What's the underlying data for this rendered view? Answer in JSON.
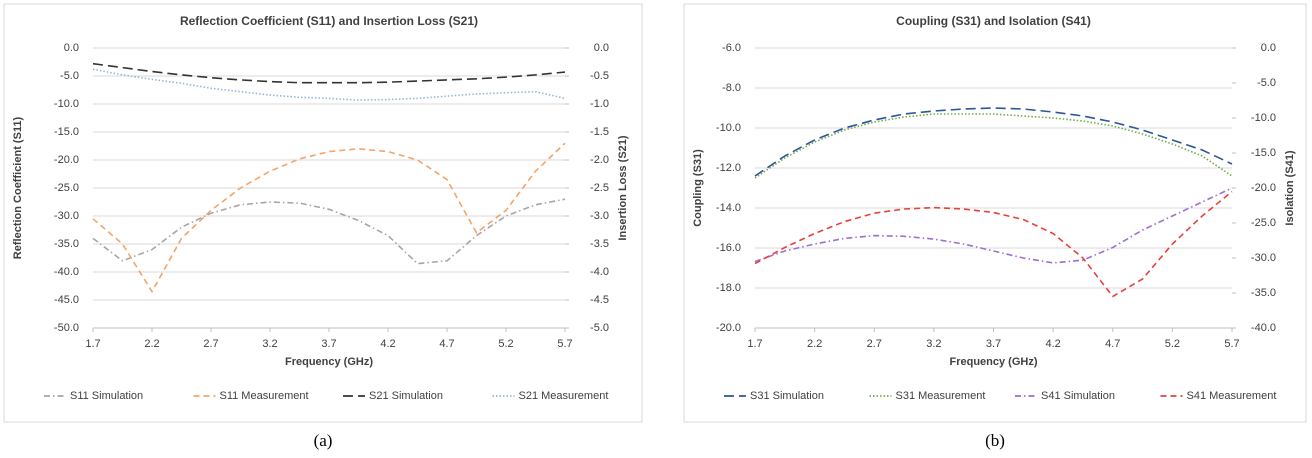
{
  "chart_data": [
    {
      "type": "line",
      "title": "Reflection Coefficient (S11) and Insertion Loss (S21)",
      "caption": "(a)",
      "xlabel": "Frequency (GHz)",
      "ylabel": "Reflection Coefficient (S11)",
      "y2label": "Insertion Loss (S21)",
      "x": [
        1.7,
        1.95,
        2.2,
        2.45,
        2.7,
        2.95,
        3.2,
        3.45,
        3.7,
        3.95,
        4.2,
        4.45,
        4.7,
        4.95,
        5.2,
        5.45,
        5.7
      ],
      "xlim": [
        1.7,
        5.7
      ],
      "xticks": [
        1.7,
        2.2,
        2.7,
        3.2,
        3.7,
        4.2,
        4.7,
        5.2,
        5.7
      ],
      "ylim": [
        -50,
        0
      ],
      "yticks": [
        {
          "value": 0,
          "label": "0.0"
        },
        {
          "value": -5,
          "label": "-5.0"
        },
        {
          "value": -10,
          "label": "-10.0"
        },
        {
          "value": -15,
          "label": "-15.0"
        },
        {
          "value": -20,
          "label": "-20.0"
        },
        {
          "value": -25,
          "label": "-25.0"
        },
        {
          "value": -30,
          "label": "-30.0"
        },
        {
          "value": -35,
          "label": "-35.0"
        },
        {
          "value": -40,
          "label": "-40.0"
        },
        {
          "value": -45,
          "label": "-45.0"
        },
        {
          "value": -50,
          "label": "-50.0"
        }
      ],
      "y2lim": [
        -5,
        0
      ],
      "y2ticks": [
        {
          "value": 0,
          "label": "0.0"
        },
        -0.5,
        {
          "value": -1,
          "label": "-1.0"
        },
        -1.5,
        {
          "value": -2,
          "label": "-2.0"
        },
        -2.5,
        {
          "value": -3,
          "label": "-3.0"
        },
        -3.5,
        {
          "value": -4,
          "label": "-4.0"
        },
        -4.5,
        {
          "value": -5,
          "label": "-5.0"
        }
      ],
      "grid": true,
      "series": [
        {
          "name": "S11 Simulation",
          "color": "#a6a6a6",
          "dash": "dash-dot",
          "values": [
            -34,
            -38,
            -36,
            -32,
            -29.5,
            -28,
            -27.5,
            -27.7,
            -28.8,
            -30.8,
            -33.5,
            -38.5,
            -38,
            -33.5,
            -30,
            -28,
            -27
          ]
        },
        {
          "name": "S11 Measurement",
          "color": "#f4a46a",
          "dash": "dash",
          "values": [
            -30.5,
            -35,
            -43.5,
            -34,
            -29,
            -25,
            -22,
            -19.8,
            -18.5,
            -18,
            -18.5,
            -20,
            -23.5,
            -33,
            -29,
            -22,
            -17
          ]
        },
        {
          "name": "S21 Simulation",
          "color": "#333333",
          "dash": "long-dash",
          "axis": "y2",
          "values": [
            -0.28,
            -0.35,
            -0.42,
            -0.48,
            -0.53,
            -0.57,
            -0.6,
            -0.62,
            -0.62,
            -0.62,
            -0.61,
            -0.59,
            -0.57,
            -0.55,
            -0.52,
            -0.48,
            -0.43
          ]
        },
        {
          "name": "S21 Measurement",
          "color": "#8fb8de",
          "dash": "dot",
          "axis": "y2",
          "values": [
            -0.38,
            -0.48,
            -0.56,
            -0.63,
            -0.72,
            -0.78,
            -0.84,
            -0.88,
            -0.9,
            -0.93,
            -0.92,
            -0.9,
            -0.86,
            -0.82,
            -0.8,
            -0.78,
            -0.9
          ]
        }
      ]
    },
    {
      "type": "line",
      "title": "Coupling (S31) and Isolation (S41)",
      "caption": "(b)",
      "xlabel": "Frequency (GHz)",
      "ylabel": "Coupling (S31)",
      "y2label": "Isolation (S41)",
      "x": [
        1.7,
        1.95,
        2.2,
        2.45,
        2.7,
        2.95,
        3.2,
        3.45,
        3.7,
        3.95,
        4.2,
        4.45,
        4.7,
        4.95,
        5.2,
        5.45,
        5.7
      ],
      "xlim": [
        1.7,
        5.7
      ],
      "xticks": [
        1.7,
        2.2,
        2.7,
        3.2,
        3.7,
        4.2,
        4.7,
        5.2,
        5.7
      ],
      "ylim": [
        -20,
        -6
      ],
      "yticks": [
        {
          "value": -6,
          "label": "-6.0"
        },
        {
          "value": -8,
          "label": "-8.0"
        },
        {
          "value": -10,
          "label": "-10.0"
        },
        {
          "value": -12,
          "label": "-12.0"
        },
        {
          "value": -14,
          "label": "-14.0"
        },
        {
          "value": -16,
          "label": "-16.0"
        },
        {
          "value": -18,
          "label": "-18.0"
        },
        {
          "value": -20,
          "label": "-20.0"
        }
      ],
      "y2lim": [
        -40,
        0
      ],
      "y2ticks": [
        {
          "value": 0,
          "label": "0.0"
        },
        {
          "value": -5,
          "label": "-5.0"
        },
        {
          "value": -10,
          "label": "-10.0"
        },
        {
          "value": -15,
          "label": "-15.0"
        },
        {
          "value": -20,
          "label": "-20.0"
        },
        {
          "value": -25,
          "label": "-25.0"
        },
        {
          "value": -30,
          "label": "-30.0"
        },
        {
          "value": -35,
          "label": "-35.0"
        },
        {
          "value": -40,
          "label": "-40.0"
        }
      ],
      "grid": true,
      "series": [
        {
          "name": "S31 Simulation",
          "color": "#2f5597",
          "dash": "long-dash",
          "values": [
            -12.4,
            -11.4,
            -10.6,
            -10,
            -9.6,
            -9.3,
            -9.15,
            -9.05,
            -9,
            -9.05,
            -9.2,
            -9.4,
            -9.7,
            -10.1,
            -10.6,
            -11.1,
            -11.8
          ]
        },
        {
          "name": "S31 Measurement",
          "color": "#70ad47",
          "dash": "dot",
          "values": [
            -12.5,
            -11.5,
            -10.7,
            -10.1,
            -9.7,
            -9.45,
            -9.3,
            -9.3,
            -9.3,
            -9.4,
            -9.5,
            -9.65,
            -9.9,
            -10.3,
            -10.8,
            -11.4,
            -12.4
          ]
        },
        {
          "name": "S41 Simulation",
          "color": "#9e6fd0",
          "dash": "dash-dot",
          "axis": "y2",
          "values": [
            -30.5,
            -29,
            -28,
            -27.2,
            -26.8,
            -26.9,
            -27.3,
            -28,
            -29,
            -30,
            -30.7,
            -30.3,
            -28.5,
            -26,
            -24,
            -22,
            -20
          ]
        },
        {
          "name": "S41 Measurement",
          "color": "#e8403a",
          "dash": "dash",
          "axis": "y2",
          "values": [
            -30.8,
            -28.5,
            -26.5,
            -24.8,
            -23.6,
            -23,
            -22.8,
            -23,
            -23.5,
            -24.5,
            -26.5,
            -30,
            -35.5,
            -33,
            -28,
            -24,
            -20.5
          ]
        }
      ]
    }
  ]
}
